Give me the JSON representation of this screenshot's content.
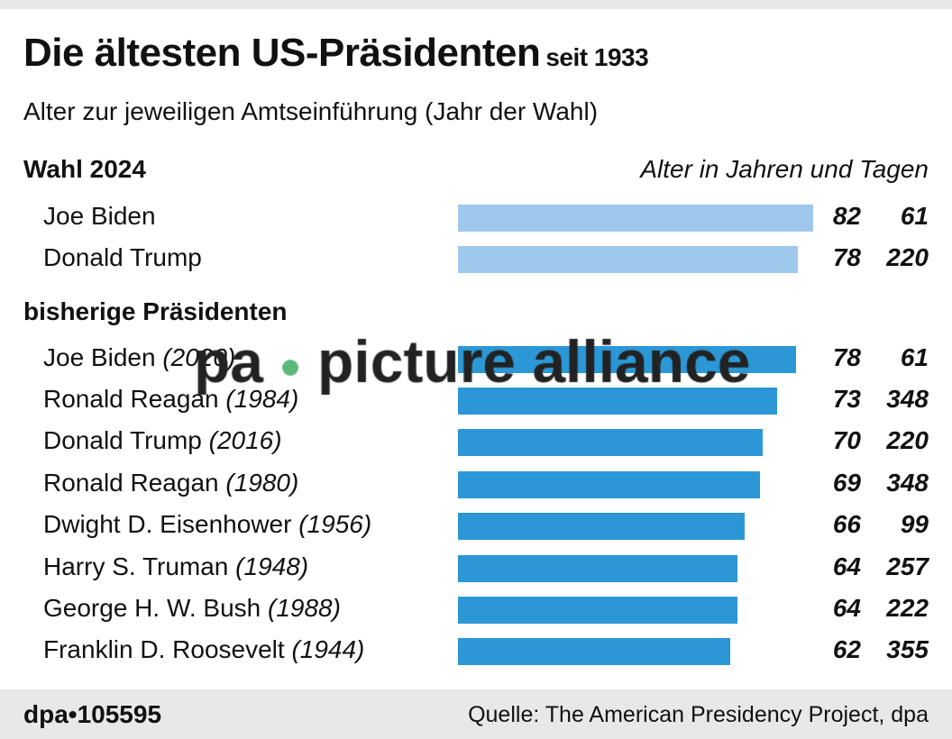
{
  "title": "Die ältesten US-Präsidenten",
  "title_suffix": "seit 1933",
  "subtitle": "Alter zur jeweiligen Amtseinführung (Jahr der Wahl)",
  "unit_label": "Alter in Jahren und Tagen",
  "watermark": "pa • picture alliance",
  "footer": {
    "code": "dpa•105595",
    "source": "Quelle: The American Presidency Project, dpa"
  },
  "colors": {
    "election_2024": "#9fc9ec",
    "previous": "#2b97d6"
  },
  "chart_data": {
    "type": "bar",
    "orientation": "horizontal",
    "groups": [
      {
        "label": "Wahl 2024",
        "color": "#9fc9ec",
        "rows": [
          {
            "name": "Joe Biden",
            "year": "",
            "age_years": 82,
            "age_days": 61
          },
          {
            "name": "Donald Trump",
            "year": "",
            "age_years": 78,
            "age_days": 220
          }
        ]
      },
      {
        "label": "bisherige Präsidenten",
        "color": "#2b97d6",
        "rows": [
          {
            "name": "Joe Biden",
            "year": "(2020)",
            "age_years": 78,
            "age_days": 61
          },
          {
            "name": "Ronald Reagan",
            "year": "(1984)",
            "age_years": 73,
            "age_days": 348
          },
          {
            "name": "Donald Trump",
            "year": "(2016)",
            "age_years": 70,
            "age_days": 220
          },
          {
            "name": "Ronald Reagan",
            "year": "(1980)",
            "age_years": 69,
            "age_days": 348
          },
          {
            "name": "Dwight D. Eisenhower",
            "year": "(1956)",
            "age_years": 66,
            "age_days": 99
          },
          {
            "name": "Harry S. Truman",
            "year": "(1948)",
            "age_years": 64,
            "age_days": 257
          },
          {
            "name": "George H. W. Bush",
            "year": "(1988)",
            "age_years": 64,
            "age_days": 222
          },
          {
            "name": "Franklin D. Roosevelt",
            "year": "(1944)",
            "age_years": 62,
            "age_days": 355
          }
        ]
      }
    ],
    "xlim": [
      0,
      82.2
    ],
    "grid": false,
    "legend": "none"
  }
}
